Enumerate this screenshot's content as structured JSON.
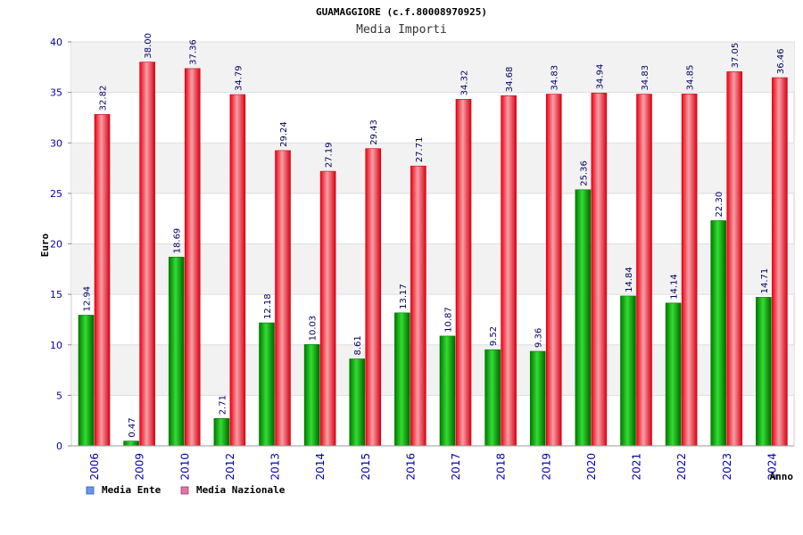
{
  "chart_data": {
    "type": "bar",
    "title": "GUAMAGGIORE (c.f.80008970925)",
    "subtitle": "Media Importi",
    "ylabel": "Euro",
    "xlabel": "Anno",
    "ylim": [
      0,
      40
    ],
    "yticks": [
      0,
      5,
      10,
      15,
      20,
      25,
      30,
      35,
      40
    ],
    "grid": true,
    "legend_position": "bottom-left",
    "categories": [
      "2006",
      "2009",
      "2010",
      "2012",
      "2013",
      "2014",
      "2015",
      "2016",
      "2017",
      "2018",
      "2019",
      "2020",
      "2021",
      "2022",
      "2023",
      "2024"
    ],
    "series": [
      {
        "name": "Media Ente",
        "color": "#00b000",
        "legend_color": "#6699ee",
        "values": [
          12.94,
          0.47,
          18.69,
          2.71,
          12.18,
          10.03,
          8.61,
          13.17,
          10.87,
          9.52,
          9.36,
          25.36,
          14.84,
          14.14,
          22.3,
          14.71
        ],
        "labels": [
          "12.94",
          "0.47",
          "18.69",
          "2.71",
          "12.18",
          "10.03",
          "8.61",
          "13.17",
          "10.87",
          "9.52",
          "9.36",
          "25.36",
          "14.84",
          "14.14",
          "22.30",
          "14.71"
        ]
      },
      {
        "name": "Media Nazionale",
        "color": "#ee1122",
        "legend_color": "#dd77aa",
        "values": [
          32.82,
          38.0,
          37.36,
          34.79,
          29.24,
          27.19,
          29.43,
          27.71,
          34.32,
          34.68,
          34.83,
          34.94,
          34.83,
          34.85,
          37.05,
          36.46
        ],
        "labels": [
          "32.82",
          "38.00",
          "37.36",
          "34.79",
          "29.24",
          "27.19",
          "29.43",
          "27.71",
          "34.32",
          "34.68",
          "34.83",
          "34.94",
          "34.83",
          "34.85",
          "37.05",
          "36.46"
        ]
      }
    ]
  }
}
